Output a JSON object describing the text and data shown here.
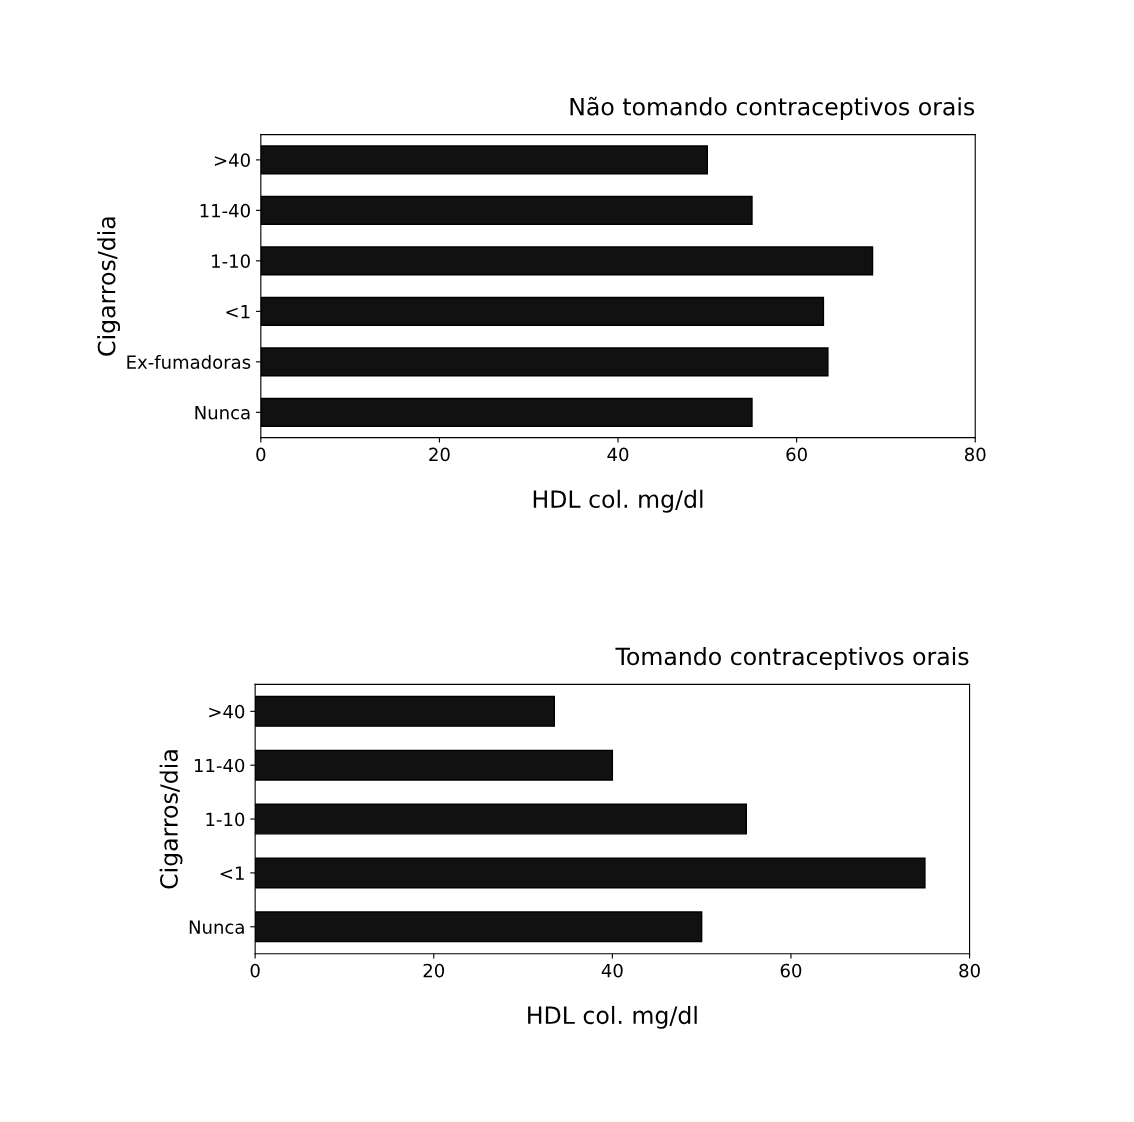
{
  "chart_data": [
    {
      "type": "bar",
      "orientation": "horizontal",
      "title": "Não tomando contraceptivos orais",
      "xlabel": "HDL col. mg/dl",
      "ylabel": "Cigarros/dia",
      "categories": [
        ">40",
        "11-40",
        "1-10",
        "<1",
        "Ex-fumadoras",
        "Nunca"
      ],
      "values": [
        50,
        55,
        68.5,
        63,
        63.5,
        55
      ],
      "color": "#111111",
      "xlim": [
        0,
        80
      ],
      "xticks": [
        0,
        20,
        40,
        60,
        80
      ],
      "grid": false
    },
    {
      "type": "bar",
      "orientation": "horizontal",
      "title": "Tomando contraceptivos orais",
      "xlabel": "HDL col. mg/dl",
      "ylabel": "Cigarros/dia",
      "categories": [
        ">40",
        "11-40",
        "1-10",
        "<1",
        "Nunca"
      ],
      "values": [
        33.5,
        40,
        55,
        75,
        50
      ],
      "color": "#111111",
      "xlim": [
        0,
        80
      ],
      "xticks": [
        0,
        20,
        40,
        60,
        80
      ],
      "grid": false
    }
  ]
}
